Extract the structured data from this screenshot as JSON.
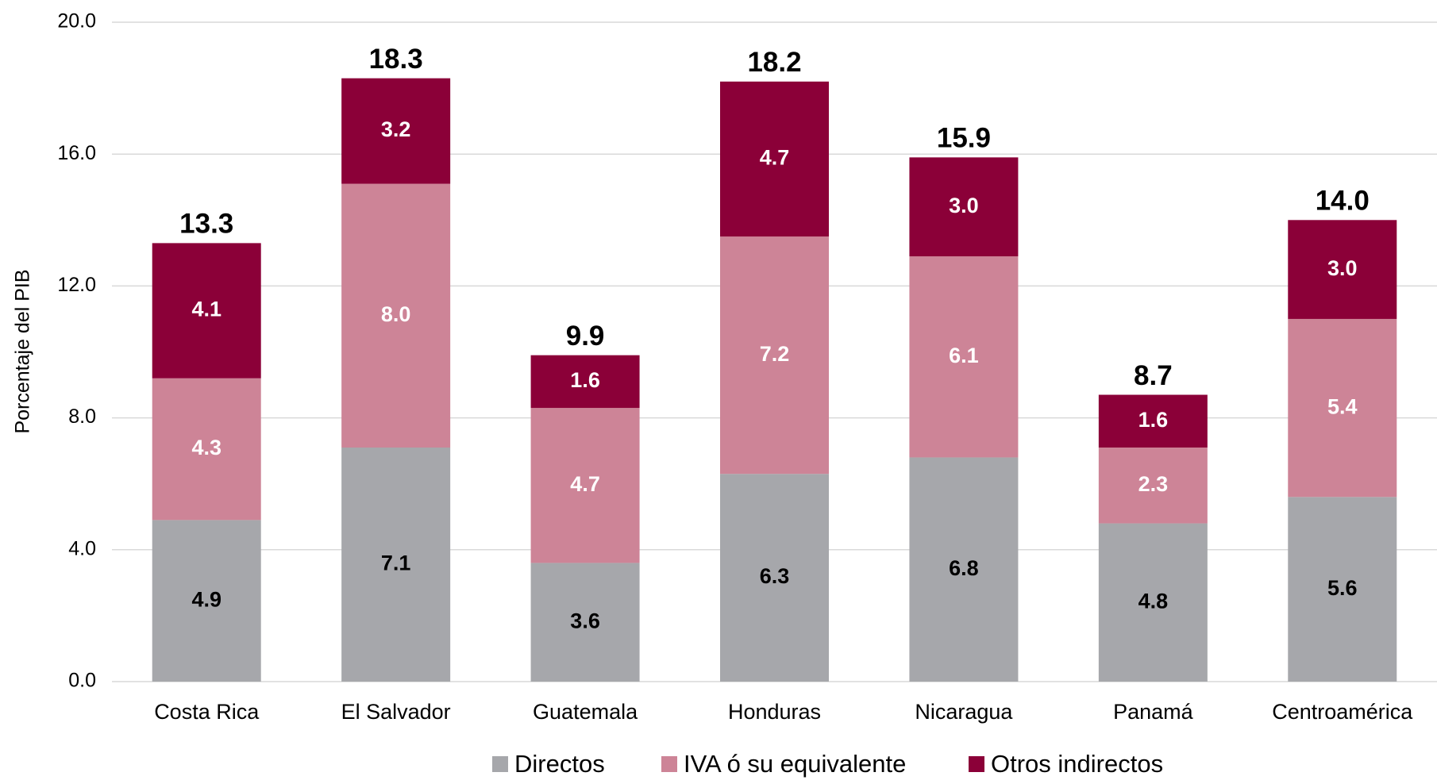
{
  "chart_data": {
    "type": "stacked_bar",
    "y_axis_label": "Porcentaje del PIB",
    "categories": [
      "Costa Rica",
      "El Salvador",
      "Guatemala",
      "Honduras",
      "Nicaragua",
      "Panamá",
      "Centroamérica"
    ],
    "series": [
      {
        "name": "Directos",
        "color": "#a6a7ab",
        "label_color": "#000000",
        "values": [
          4.9,
          7.1,
          3.6,
          6.3,
          6.8,
          4.8,
          5.6
        ],
        "value_labels": [
          "4.9",
          "7.1",
          "3.6",
          "6.3",
          "6.8",
          "4.8",
          "5.6"
        ]
      },
      {
        "name": "IVA ó su equivalente",
        "color": "#cd8497",
        "label_color": "#ffffff",
        "values": [
          4.3,
          8.0,
          4.7,
          7.2,
          6.1,
          2.3,
          5.4
        ],
        "value_labels": [
          "4.3",
          "8.0",
          "4.7",
          "7.2",
          "6.1",
          "2.3",
          "5.4"
        ]
      },
      {
        "name": "Otros indirectos",
        "color": "#8b0038",
        "label_color": "#ffffff",
        "values": [
          4.1,
          3.2,
          1.6,
          4.7,
          3.0,
          1.6,
          3.0
        ],
        "value_labels": [
          "4.1",
          "3.2",
          "1.6",
          "4.7",
          "3.0",
          "1.6",
          "3.0"
        ]
      }
    ],
    "totals": [
      13.3,
      18.3,
      9.9,
      18.2,
      15.9,
      8.7,
      14.0
    ],
    "total_labels": [
      "13.3",
      "18.3",
      "9.9",
      "18.2",
      "15.9",
      "8.7",
      "14.0"
    ],
    "ylim": [
      0,
      20
    ],
    "yticks": [
      {
        "value": 0,
        "label": "0.0"
      },
      {
        "value": 4,
        "label": "4.0"
      },
      {
        "value": 8,
        "label": "8.0"
      },
      {
        "value": 12,
        "label": "12.0"
      },
      {
        "value": 16,
        "label": "16.0"
      },
      {
        "value": 20,
        "label": "20.0"
      }
    ],
    "grid": true,
    "legend": "bottom"
  }
}
